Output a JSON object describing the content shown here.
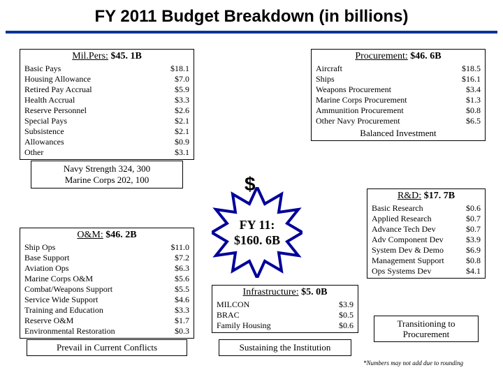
{
  "title": "FY 2011 Budget Breakdown (in billions)",
  "milpers": {
    "header_label": "Mil.Pers:",
    "header_amount": "$45. 1B",
    "items": [
      {
        "label": "Basic Pays",
        "val": "$18.1"
      },
      {
        "label": "Housing Allowance",
        "val": "$7.0"
      },
      {
        "label": "Retired Pay Accrual",
        "val": "$5.9"
      },
      {
        "label": "Health Accrual",
        "val": "$3.3"
      },
      {
        "label": "Reserve Personnel",
        "val": "$2.6"
      },
      {
        "label": "Special Pays",
        "val": "$2.1"
      },
      {
        "label": "Subsistence",
        "val": "$2.1"
      },
      {
        "label": "Allowances",
        "val": "$0.9"
      },
      {
        "label": "Other",
        "val": "$3.1"
      }
    ]
  },
  "strength": {
    "line1": "Navy Strength 324, 300",
    "line2": "Marine Corps 202, 100"
  },
  "om": {
    "header_label": "O&M:",
    "header_amount": "$46. 2B",
    "items": [
      {
        "label": "Ship Ops",
        "val": "$11.0"
      },
      {
        "label": "Base Support",
        "val": "$7.2"
      },
      {
        "label": "Aviation Ops",
        "val": "$6.3"
      },
      {
        "label": "Marine Corps O&M",
        "val": "$5.6"
      },
      {
        "label": "Combat/Weapons Support",
        "val": "$5.5"
      },
      {
        "label": "Service Wide Support",
        "val": "$4.6"
      },
      {
        "label": "Training and Education",
        "val": "$3.3"
      },
      {
        "label": "Reserve O&M",
        "val": "$1.7"
      },
      {
        "label": "Environmental Restoration",
        "val": "$0.3"
      }
    ],
    "banner": "Prevail in Current Conflicts"
  },
  "procurement": {
    "header_label": "Procurement:",
    "header_amount": "$46. 6B",
    "items": [
      {
        "label": "Aircraft",
        "val": "$18.5"
      },
      {
        "label": "Ships",
        "val": "$16.1"
      },
      {
        "label": "Weapons Procurement",
        "val": "$3.4"
      },
      {
        "label": "Marine Corps Procurement",
        "val": "$1.3"
      },
      {
        "label": "Ammunition Procurement",
        "val": "$0.8"
      },
      {
        "label": "Other Navy Procurement",
        "val": "$6.5"
      }
    ],
    "balanced": "Balanced Investment"
  },
  "rd": {
    "header_label": "R&D:",
    "header_amount": "$17. 7B",
    "items": [
      {
        "label": "Basic Research",
        "val": "$0.6"
      },
      {
        "label": "Applied Research",
        "val": "$0.7"
      },
      {
        "label": "Advance Tech Dev",
        "val": "$0.7"
      },
      {
        "label": "Adv Component Dev",
        "val": "$3.9"
      },
      {
        "label": "System Dev & Demo",
        "val": "$6.9"
      },
      {
        "label": "Management Support",
        "val": "$0.8"
      },
      {
        "label": "Ops Systems Dev",
        "val": "$4.1"
      }
    ],
    "banner1": "Transitioning to",
    "banner2": "Procurement"
  },
  "infra": {
    "header_label": "Infrastructure:",
    "header_amount": "$5. 0B",
    "items": [
      {
        "label": "MILCON",
        "val": "$3.9"
      },
      {
        "label": "BRAC",
        "val": "$0.5"
      },
      {
        "label": "Family Housing",
        "val": "$0.6"
      }
    ],
    "banner": "Sustaining the Institution"
  },
  "center": {
    "dollar": "$",
    "line1": "FY 11:",
    "line2": "$160. 6B"
  },
  "footnote": "*Numbers may not add due to rounding",
  "colors": {
    "blue_bar": "#003399",
    "star_fill": "#000099"
  }
}
